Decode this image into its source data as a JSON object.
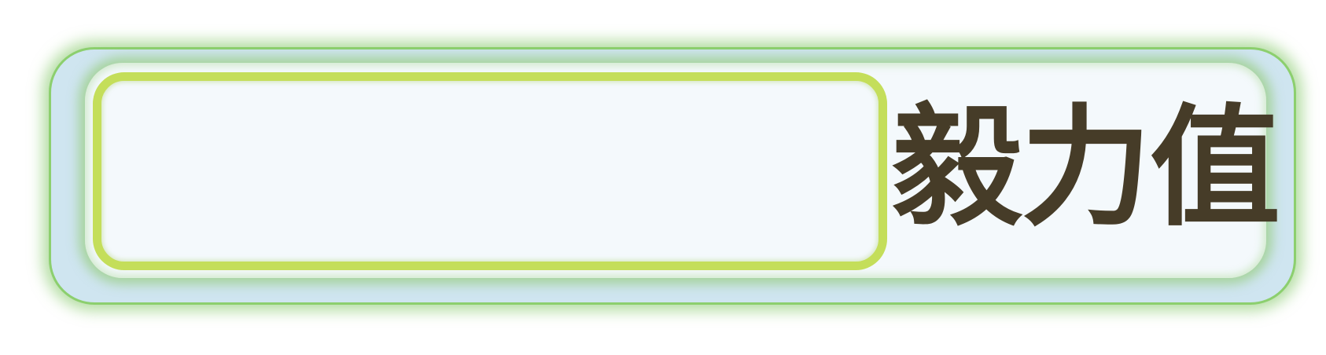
{
  "stat_bar": {
    "label": "毅力值",
    "fill_fraction": 0,
    "colors": {
      "frame_background": "#cfe5f0",
      "frame_glow": "#8ccf6e",
      "slot_border": "#c4de5a",
      "slot_background": "#f4f9fc",
      "label_text": "#463c28"
    }
  }
}
